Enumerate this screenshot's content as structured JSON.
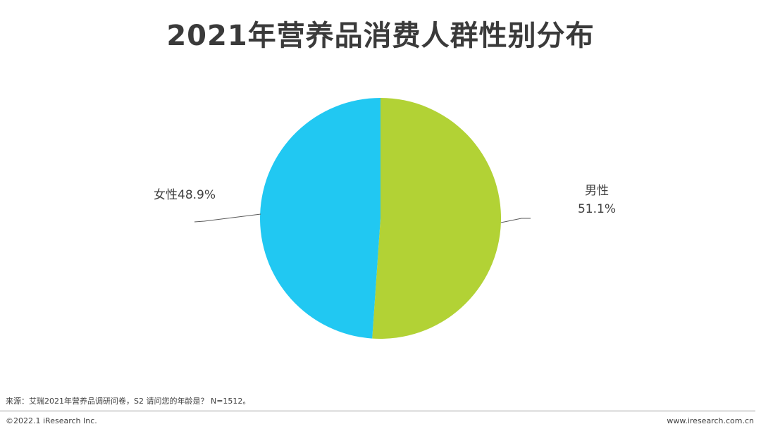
{
  "title": "2021年营养品消费人群性别分布",
  "chart_data": {
    "type": "pie",
    "title": "2021年营养品消费人群性别分布",
    "slices": [
      {
        "name": "男性",
        "value": 51.1,
        "label": "51.1%",
        "color": "#b2d235"
      },
      {
        "name": "女性",
        "value": 48.9,
        "label": "48.9%",
        "color": "#21c8f2"
      }
    ]
  },
  "labels": {
    "female": "女性48.9%",
    "male_name": "男性",
    "male_value": "51.1%"
  },
  "footer": {
    "source": "来源：艾瑞2021年营养品调研问卷，S2 请问您的年龄是？ N=1512。",
    "copyright": "©2022.1 iResearch Inc.",
    "website": "www.iresearch.com.cn"
  }
}
